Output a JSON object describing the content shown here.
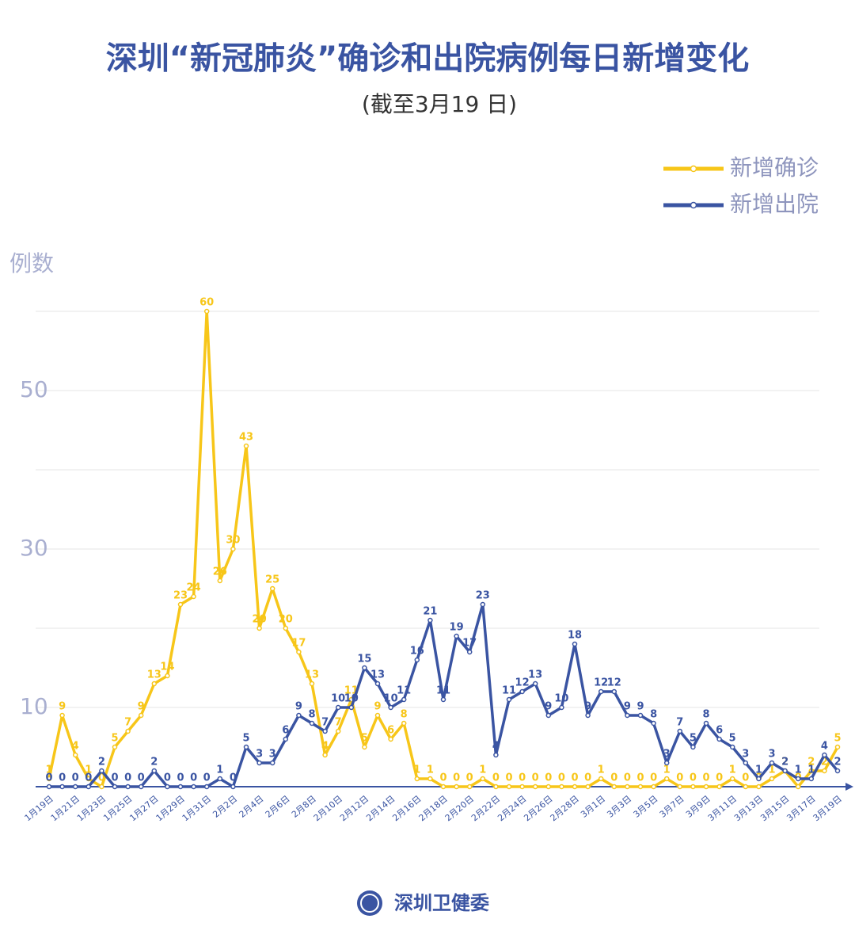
{
  "chart_data": {
    "type": "line",
    "title": "深圳“新冠肺炎”确诊和出院病例每日新增变化",
    "subtitle": "(截至3月19 日)",
    "y_label": "例数",
    "footer": "深圳卫健委",
    "categories": [
      "1月19日",
      null,
      "1月21日",
      null,
      "1月23日",
      null,
      "1月25日",
      null,
      "1月27日",
      null,
      "1月29日",
      null,
      "1月31日",
      null,
      "2月2日",
      null,
      "2月4日",
      null,
      "2月6日",
      null,
      "2月8日",
      null,
      "2月10日",
      null,
      "2月12日",
      null,
      "2月14日",
      null,
      "2月16日",
      null,
      "2月18日",
      null,
      "2月20日",
      null,
      "2月22日",
      null,
      "2月24日",
      null,
      "2月26日",
      null,
      "2月28日",
      null,
      "3月1日",
      null,
      "3月3日",
      null,
      "3月5日",
      null,
      "3月7日",
      null,
      "3月9日",
      null,
      "3月11日",
      null,
      "3月13日",
      null,
      "3月15日",
      null,
      "3月17日",
      null,
      "3月19日"
    ],
    "series": [
      {
        "name": "新增确诊",
        "color": "#f7c619",
        "values": [
          1,
          9,
          4,
          1,
          0,
          5,
          7,
          9,
          13,
          14,
          23,
          24,
          60,
          26,
          30,
          43,
          20,
          25,
          20,
          17,
          13,
          4,
          7,
          11,
          5,
          9,
          6,
          8,
          1,
          1,
          0,
          0,
          0,
          1,
          0,
          0,
          0,
          0,
          0,
          0,
          0,
          0,
          1,
          0,
          0,
          0,
          0,
          1,
          0,
          0,
          0,
          0,
          1,
          0,
          0,
          1,
          2,
          0,
          2,
          2,
          5
        ]
      },
      {
        "name": "新增出院",
        "color": "#3a54a2",
        "values": [
          0,
          0,
          0,
          0,
          2,
          0,
          0,
          0,
          2,
          0,
          0,
          0,
          0,
          1,
          0,
          5,
          3,
          3,
          6,
          9,
          8,
          7,
          10,
          10,
          15,
          13,
          10,
          11,
          16,
          21,
          11,
          19,
          17,
          23,
          4,
          11,
          12,
          13,
          9,
          10,
          18,
          9,
          12,
          12,
          9,
          9,
          8,
          3,
          7,
          5,
          8,
          6,
          5,
          3,
          1,
          3,
          2,
          1,
          1,
          4,
          2
        ]
      }
    ],
    "ylim": [
      0,
      60
    ],
    "yticks": [
      10,
      30,
      50
    ],
    "ygrid": [
      10,
      20,
      30,
      40,
      50,
      60
    ],
    "grid": true,
    "legend": "top-right"
  }
}
